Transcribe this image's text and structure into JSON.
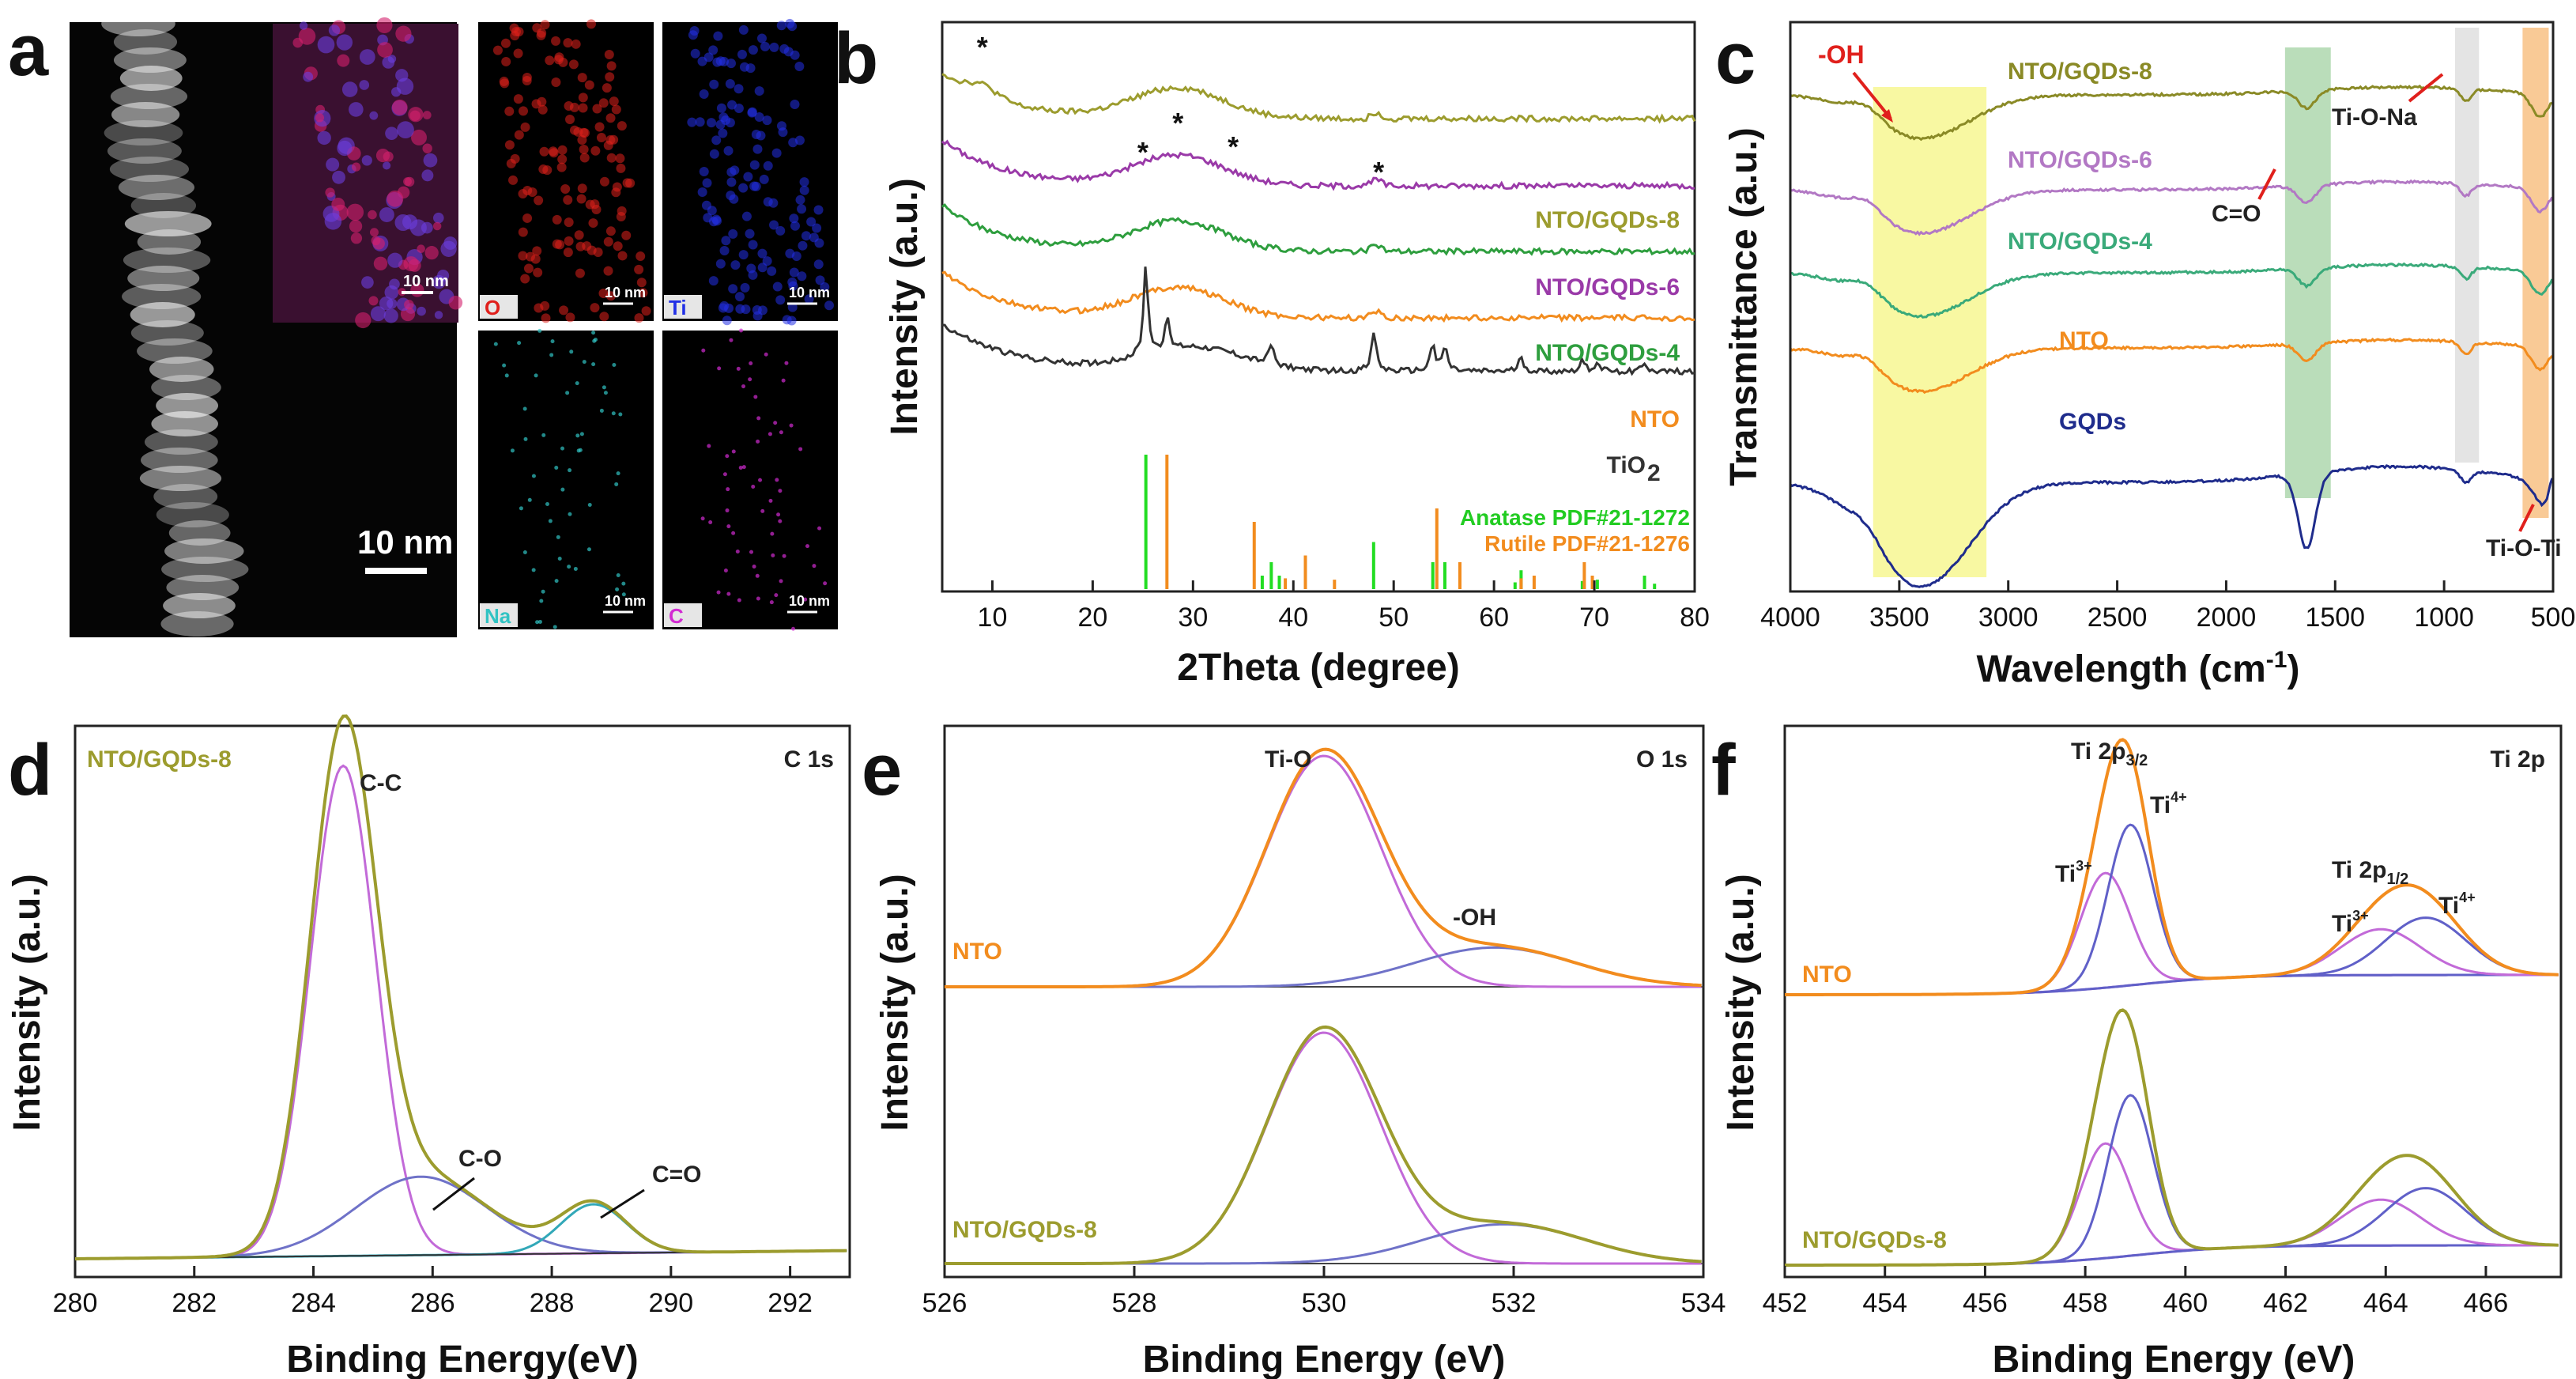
{
  "chart_data": [
    {
      "panel": "a",
      "type": "image",
      "scale_bar": "10 nm",
      "eds_maps": [
        {
          "element": "O",
          "color": "#e0201c",
          "scale": "10 nm"
        },
        {
          "element": "Ti",
          "color": "#2230e6",
          "scale": "10 nm"
        },
        {
          "element": "Na",
          "color": "#31c3c3",
          "scale": "10 nm"
        },
        {
          "element": "C",
          "color": "#d22bd2",
          "scale": "10 nm"
        }
      ],
      "overlay_scale": "10 nm"
    },
    {
      "panel": "b",
      "type": "line",
      "xlabel": "2Theta (degree)",
      "ylabel": "Intensity (a.u.)",
      "xlim": [
        5,
        80
      ],
      "xticks": [
        10,
        20,
        30,
        40,
        50,
        60,
        70,
        80
      ],
      "series": [
        {
          "name": "NTO/GQDs-8",
          "color": "#9c9c2e"
        },
        {
          "name": "NTO/GQDs-6",
          "color": "#9a3aa8"
        },
        {
          "name": "NTO/GQDs-4",
          "color": "#2e9e3e"
        },
        {
          "name": "NTO",
          "color": "#f28c1e"
        },
        {
          "name": "TiO",
          "sub": "2",
          "color": "#333333"
        }
      ],
      "star_marker": "*",
      "star_positions": [
        9,
        25,
        28.5,
        34,
        48.5
      ],
      "references": [
        {
          "name": "Anatase PDF#21-1272",
          "color": "#22dd22",
          "positions": [
            25.3,
            36.9,
            37.8,
            38.6,
            48.0,
            53.9,
            55.1,
            62.1,
            62.7,
            68.8,
            70.3,
            75.0,
            76.0
          ],
          "heights": [
            1.0,
            0.1,
            0.2,
            0.1,
            0.35,
            0.2,
            0.2,
            0.05,
            0.14,
            0.06,
            0.07,
            0.1,
            0.04
          ]
        },
        {
          "name": "Rutile PDF#21-1276",
          "color": "#f28c1e",
          "positions": [
            27.4,
            36.1,
            39.2,
            41.2,
            44.1,
            54.3,
            56.6,
            62.7,
            64.0,
            69.0,
            69.8
          ],
          "heights": [
            1.0,
            0.5,
            0.08,
            0.25,
            0.07,
            0.6,
            0.2,
            0.08,
            0.1,
            0.2,
            0.1
          ]
        }
      ]
    },
    {
      "panel": "c",
      "type": "line",
      "xlabel": "Wavelength (cm",
      "xlabel_sup": "-1",
      "xlabel_end": ")",
      "ylabel": "Transmittance (a.u.)",
      "xlim": [
        4000,
        500
      ],
      "xticks": [
        4000,
        3500,
        3000,
        2500,
        2000,
        1500,
        1000,
        500
      ],
      "series": [
        {
          "name": "NTO/GQDs-8",
          "color": "#8a8a26"
        },
        {
          "name": "NTO/GQDs-6",
          "color": "#b278c4"
        },
        {
          "name": "NTO/GQDs-4",
          "color": "#3aaa7a"
        },
        {
          "name": "NTO",
          "color": "#f28c1e"
        },
        {
          "name": "GQDs",
          "color": "#1f2c8c"
        }
      ],
      "bands": [
        {
          "label": "-OH",
          "from": 3620,
          "to": 3100,
          "color": "#f5f57a"
        },
        {
          "label": "C=O",
          "from": 1730,
          "to": 1520,
          "color": "#9ccf9c"
        },
        {
          "label": "Ti-O-Na",
          "from": 950,
          "to": 840,
          "color": "#d8d8d8"
        },
        {
          "label": "Ti-O-Ti",
          "from": 640,
          "to": 520,
          "color": "#f6b46a"
        }
      ]
    },
    {
      "panel": "d",
      "type": "line",
      "xlabel": "Binding Energy(eV)",
      "ylabel": "Intensity (a.u.)",
      "xlim": [
        280,
        293
      ],
      "xticks": [
        280,
        282,
        284,
        286,
        288,
        290,
        292
      ],
      "sample": "NTO/GQDs-8",
      "corner_label": "C 1s",
      "envelope_color": "#9c9c2e",
      "peaks": [
        {
          "label": "C-C",
          "center": 284.5,
          "height": 1.0,
          "sigma": 0.55,
          "color": "#c26ad8"
        },
        {
          "label": "C-O",
          "center": 285.8,
          "height": 0.16,
          "sigma": 1.1,
          "color": "#6f72c8"
        },
        {
          "label": "C=O",
          "center": 288.7,
          "height": 0.1,
          "sigma": 0.55,
          "color": "#32a8b8"
        }
      ]
    },
    {
      "panel": "e",
      "type": "line",
      "xlabel": "Binding Energy (eV)",
      "ylabel": "Intensity (a.u.)",
      "xlim": [
        526,
        534
      ],
      "xticks": [
        526,
        528,
        530,
        532,
        534
      ],
      "corner_label": "O 1s",
      "samples": [
        {
          "name": "NTO",
          "color": "#f28c1e",
          "peaks": [
            {
              "label": "Ti-O",
              "center": 530.0,
              "height": 1.0,
              "sigma": 0.6,
              "color": "#c26ad8"
            },
            {
              "label": "-OH",
              "center": 531.8,
              "height": 0.17,
              "sigma": 0.85,
              "color": "#6f72c8"
            }
          ]
        },
        {
          "name": "NTO/GQDs-8",
          "color": "#9c9c2e",
          "peaks": [
            {
              "label": "Ti-O",
              "center": 530.0,
              "height": 1.0,
              "sigma": 0.6,
              "color": "#c26ad8"
            },
            {
              "label": "-OH",
              "center": 531.9,
              "height": 0.17,
              "sigma": 0.85,
              "color": "#6f72c8"
            }
          ]
        }
      ],
      "peak_labels": [
        "Ti-O",
        "-OH"
      ]
    },
    {
      "panel": "f",
      "type": "line",
      "xlabel": "Binding Energy (eV)",
      "ylabel": "Intensity (a.u.)",
      "xlim": [
        452,
        467.5
      ],
      "xticks": [
        452,
        454,
        456,
        458,
        460,
        462,
        464,
        466
      ],
      "corner_label": "Ti 2p",
      "samples": [
        {
          "name": "NTO",
          "color": "#f28c1e",
          "peaks": [
            {
              "center": 458.4,
              "height": 0.5,
              "sigma": 0.5,
              "color": "#c26ad8"
            },
            {
              "center": 458.9,
              "height": 0.7,
              "sigma": 0.45,
              "color": "#6060c8"
            },
            {
              "center": 463.9,
              "height": 0.2,
              "sigma": 0.8,
              "color": "#c26ad8"
            },
            {
              "center": 464.8,
              "height": 0.25,
              "sigma": 0.8,
              "color": "#6060c8"
            }
          ]
        },
        {
          "name": "NTO/GQDs-8",
          "color": "#9c9c2e",
          "peaks": [
            {
              "center": 458.4,
              "height": 0.5,
              "sigma": 0.5,
              "color": "#c26ad8"
            },
            {
              "center": 458.9,
              "height": 0.7,
              "sigma": 0.45,
              "color": "#6060c8"
            },
            {
              "center": 463.9,
              "height": 0.2,
              "sigma": 0.8,
              "color": "#c26ad8"
            },
            {
              "center": 464.8,
              "height": 0.25,
              "sigma": 0.8,
              "color": "#6060c8"
            }
          ]
        }
      ],
      "labels": {
        "ti2p32": "Ti 2p",
        "ti2p32_sub": "3/2",
        "ti2p12": "Ti 2p",
        "ti2p12_sub": "1/2",
        "ti3": "Ti",
        "ti3_sup": "3+",
        "ti4": "Ti",
        "ti4_sup": "4+"
      }
    }
  ],
  "panel_letters": [
    "a",
    "b",
    "c",
    "d",
    "e",
    "f"
  ]
}
